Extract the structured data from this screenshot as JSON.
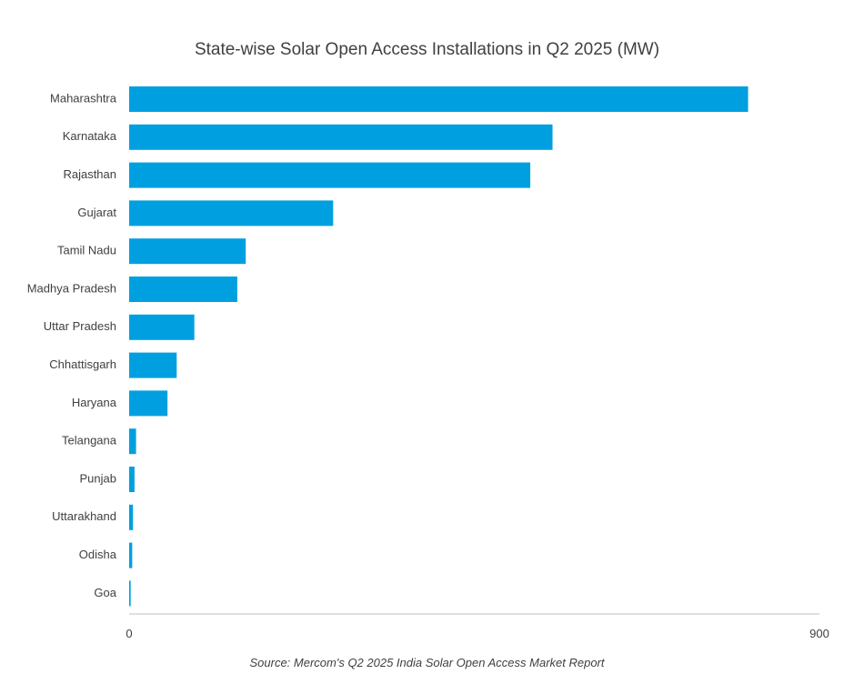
{
  "chart_data": {
    "type": "bar",
    "orientation": "horizontal",
    "title": "State-wise Solar Open Access Installations in Q2 2025 (MW)",
    "categories": [
      "Maharashtra",
      "Karnataka",
      "Rajasthan",
      "Gujarat",
      "Tamil Nadu",
      "Madhya Pradesh",
      "Uttar Pradesh",
      "Chhattisgarh",
      "Haryana",
      "Telangana",
      "Punjab",
      "Uttarakhand",
      "Odisha",
      "Goa"
    ],
    "values": [
      807,
      552,
      523,
      266,
      152,
      141,
      85,
      62,
      50,
      9,
      7,
      5,
      4,
      2
    ],
    "xlim": [
      0,
      900
    ],
    "x_ticks": [
      "0",
      "900"
    ],
    "bar_color": "#00A0E0",
    "grid": false,
    "source": "Source: Mercom's Q2 2025 India Solar Open Access Market Report"
  }
}
